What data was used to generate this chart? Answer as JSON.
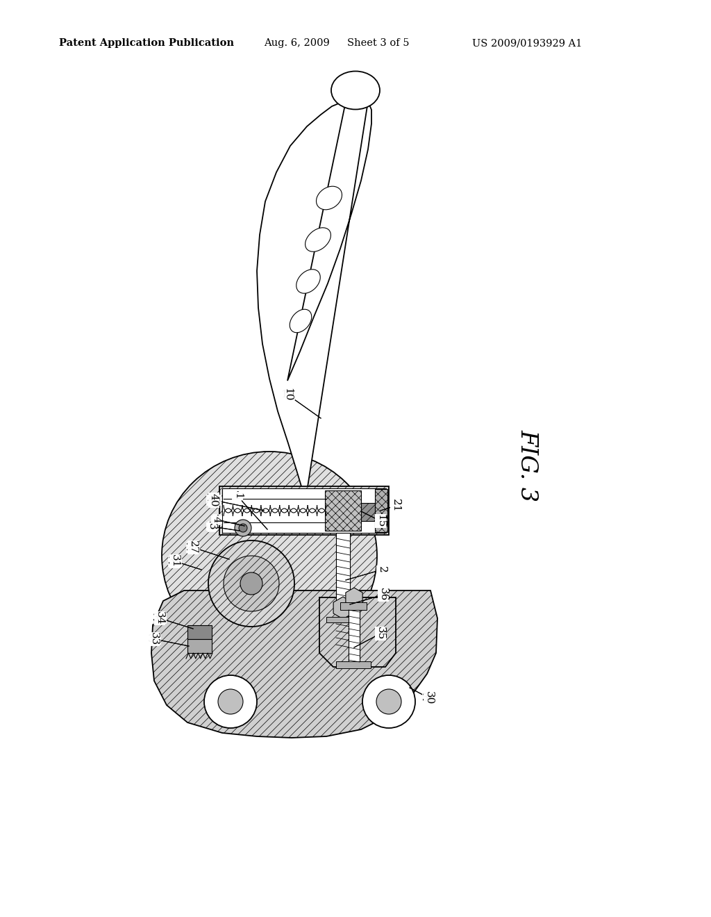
{
  "background_color": "#ffffff",
  "header_text": "Patent Application Publication",
  "header_date": "Aug. 6, 2009",
  "header_sheet": "Sheet 3 of 5",
  "header_patent": "US 2009/0193929 A1",
  "fig_label": "FIG. 3",
  "title_fontsize": 10.5,
  "label_fontsize": 11,
  "fig_label_fontsize": 24,
  "lw_main": 1.3,
  "lw_thin": 0.8,
  "hatch_lw": 0.5
}
